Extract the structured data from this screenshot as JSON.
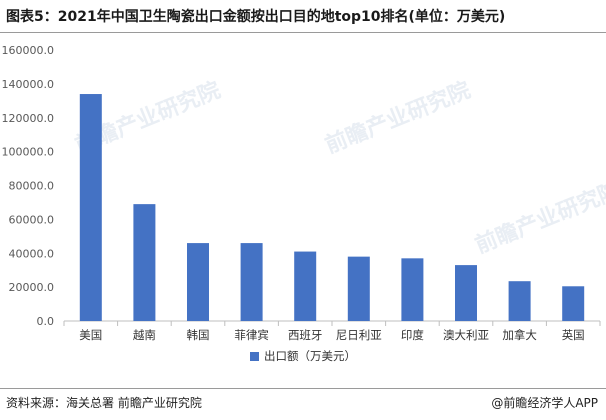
{
  "header": {
    "title": "图表5：2021年中国卫生陶瓷出口金额按出口目的地top10排名(单位：万美元)"
  },
  "footer": {
    "source": "资料来源：海关总署 前瞻产业研究院",
    "brand": "@前瞻经济学人APP"
  },
  "watermark": {
    "text": "前瞻产业研究院"
  },
  "colors": {
    "bar": "#4472c4",
    "axis": "#bfbfbf",
    "tick_text": "#595959"
  },
  "chart_data": {
    "type": "bar",
    "categories": [
      "美国",
      "越南",
      "韩国",
      "菲律宾",
      "西班牙",
      "尼日利亚",
      "印度",
      "澳大利亚",
      "加拿大",
      "英国"
    ],
    "series": [
      {
        "name": "出口额（万美元）",
        "values": [
          134000,
          69000,
          46000,
          46000,
          41000,
          38000,
          37000,
          33000,
          23500,
          20500
        ]
      }
    ],
    "ylim": [
      0,
      160000
    ],
    "yticks": [
      "0.0",
      "20000.0",
      "40000.0",
      "60000.0",
      "80000.0",
      "100000.0",
      "120000.0",
      "140000.0",
      "160000.0"
    ],
    "legend_position": "bottom",
    "grid": false
  }
}
